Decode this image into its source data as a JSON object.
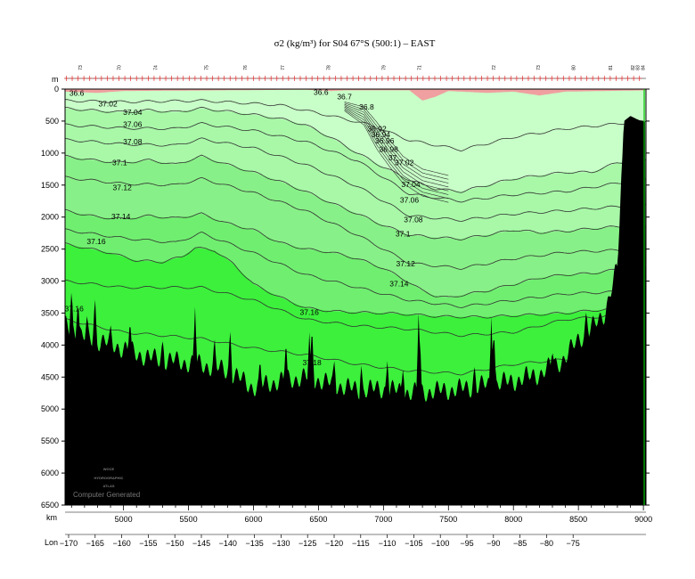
{
  "chart_data": {
    "type": "contour",
    "title": "σ2 (kg/m³) for S04 67°S (500:1) – EAST",
    "y_unit_label": "m",
    "x_unit_label": "km",
    "lon_label": "Lon",
    "ylim": [
      0,
      6500
    ],
    "y_reversed": true,
    "xlim": [
      4550,
      9020
    ],
    "y_ticks": [
      0,
      500,
      1000,
      1500,
      2000,
      2500,
      3000,
      3500,
      4000,
      4500,
      5000,
      5500,
      6000,
      6500
    ],
    "x_ticks": [
      5000,
      5500,
      6000,
      6500,
      7000,
      7500,
      8000,
      8500,
      9000
    ],
    "lon_ticks": [
      -170,
      -165,
      -160,
      -155,
      -150,
      -145,
      -140,
      -135,
      -130,
      -125,
      -120,
      -115,
      -110,
      -105,
      -100,
      -95,
      -90,
      -85,
      -80,
      -75
    ],
    "lon_tick_km": [
      4580,
      4735,
      4885,
      5035,
      5185,
      5335,
      5485,
      5635,
      5785,
      5935,
      6085,
      6235,
      6385,
      6535,
      6685,
      6835,
      6985,
      7135,
      7285,
      7435
    ],
    "stations": [
      {
        "label": "73",
        "km": 4680
      },
      {
        "label": "70",
        "km": 4980
      },
      {
        "label": "74",
        "km": 5260
      },
      {
        "label": "75",
        "km": 5650
      },
      {
        "label": "76",
        "km": 5950
      },
      {
        "label": "77",
        "km": 6235
      },
      {
        "label": "78",
        "km": 6590
      },
      {
        "label": "79",
        "km": 7015
      },
      {
        "label": "71",
        "km": 7290
      },
      {
        "label": "72",
        "km": 7860
      },
      {
        "label": "73",
        "km": 8205
      },
      {
        "label": "80",
        "km": 8475
      },
      {
        "label": "81",
        "km": 8760
      },
      {
        "label": "82",
        "km": 8930
      },
      {
        "label": "83",
        "km": 8970
      },
      {
        "label": "84",
        "km": 9010
      }
    ],
    "contour_levels": [
      36.7,
      36.8,
      36.9,
      36.92,
      36.94,
      36.96,
      36.98,
      37,
      37.02,
      37.04,
      37.06,
      37.08,
      37.1,
      37.12,
      37.14,
      37.16,
      37.18
    ],
    "contour_labels": [
      {
        "text": "36.6",
        "km": 4640,
        "depth": 60
      },
      {
        "text": "36.6",
        "km": 6520,
        "depth": 50
      },
      {
        "text": "36.7",
        "km": 6700,
        "depth": 120
      },
      {
        "text": "36.8",
        "km": 6870,
        "depth": 280
      },
      {
        "text": "36.92",
        "km": 6950,
        "depth": 620
      },
      {
        "text": "36.94",
        "km": 6980,
        "depth": 710
      },
      {
        "text": "36.96",
        "km": 7010,
        "depth": 810
      },
      {
        "text": "36.98",
        "km": 7040,
        "depth": 940
      },
      {
        "text": "37",
        "km": 7070,
        "depth": 1070
      },
      {
        "text": "37.02",
        "km": 4880,
        "depth": 230
      },
      {
        "text": "37.02",
        "km": 7160,
        "depth": 1150
      },
      {
        "text": "37.04",
        "km": 5070,
        "depth": 360
      },
      {
        "text": "37.04",
        "km": 7210,
        "depth": 1490
      },
      {
        "text": "37.06",
        "km": 5070,
        "depth": 550
      },
      {
        "text": "37.06",
        "km": 7200,
        "depth": 1730
      },
      {
        "text": "37.08",
        "km": 5070,
        "depth": 820
      },
      {
        "text": "37.08",
        "km": 7230,
        "depth": 2040
      },
      {
        "text": "37.1",
        "km": 4970,
        "depth": 1150
      },
      {
        "text": "37.1",
        "km": 7150,
        "depth": 2260
      },
      {
        "text": "37.12",
        "km": 4990,
        "depth": 1540
      },
      {
        "text": "37.12",
        "km": 7170,
        "depth": 2730
      },
      {
        "text": "37.14",
        "km": 4980,
        "depth": 1990
      },
      {
        "text": "37.14",
        "km": 7120,
        "depth": 3040
      },
      {
        "text": "37.16",
        "km": 4790,
        "depth": 2380
      },
      {
        "text": "37.16",
        "km": 6430,
        "depth": 3490
      },
      {
        "text": "37.16",
        "km": 4620,
        "depth": 3430
      },
      {
        "text": "37.18",
        "km": 6450,
        "depth": 4270
      }
    ],
    "band_colors": {
      "pink": "#f0a0a0",
      "palest": "#c8ffc8",
      "pale": "#a8f8a8",
      "light": "#88f088",
      "mid": "#70ee70",
      "bright": "#3cf03c",
      "bottom": "#000000"
    },
    "grid": false
  },
  "watermark": {
    "line1": "WOCE",
    "line2": "HYDROGRAPHIC",
    "line3": "ATLAS",
    "computer_generated": "Computer Generated"
  }
}
